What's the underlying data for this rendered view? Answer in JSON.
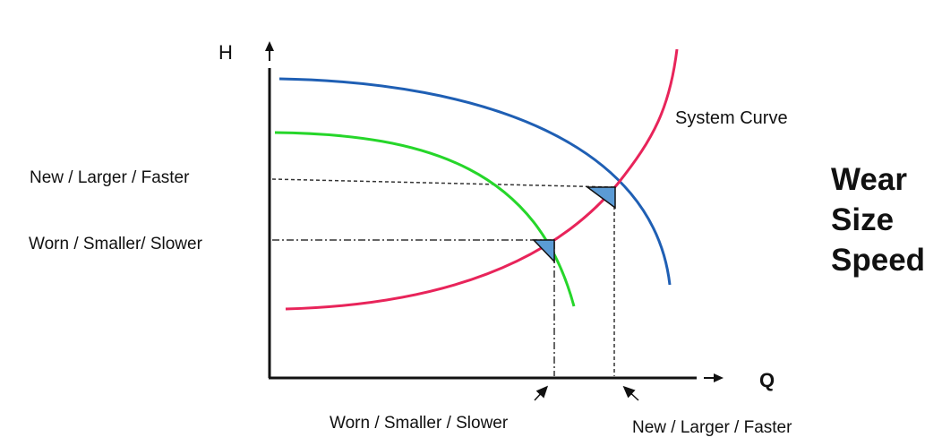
{
  "axes": {
    "y_label": "H",
    "x_label": "Q"
  },
  "curves": {
    "system": {
      "label": "System Curve",
      "color": "#e8245a"
    },
    "pump_new": {
      "color": "#1f5fb4"
    },
    "pump_worn": {
      "color": "#26d62a"
    }
  },
  "operating_points": {
    "new": {
      "h_label": "New / Larger / Faster",
      "q_label": "New / Larger  / Faster"
    },
    "worn": {
      "h_label": "Worn / Smaller/ Slower",
      "q_label": "Worn / Smaller / Slower"
    }
  },
  "marker_color": "#5b9bd5",
  "factors": [
    "Wear",
    "Size",
    "Speed"
  ]
}
